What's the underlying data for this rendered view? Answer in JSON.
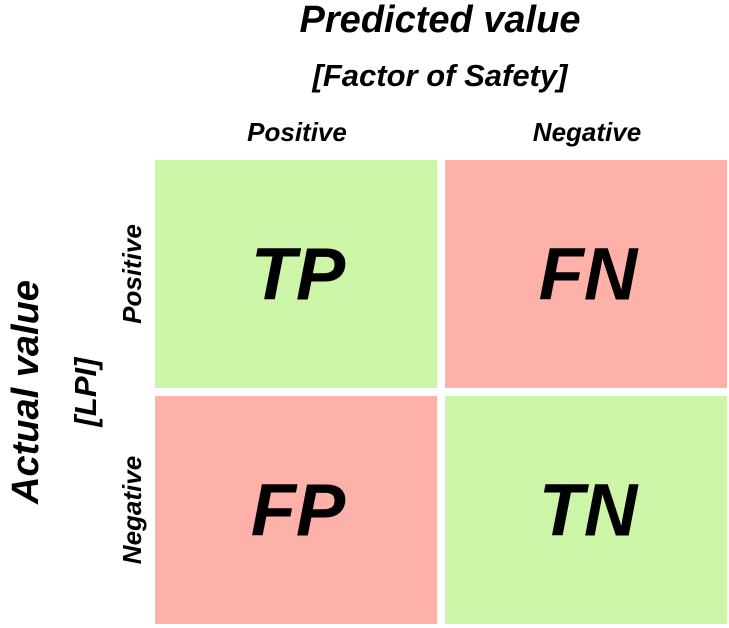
{
  "predicted": {
    "title": "Predicted value",
    "subtitle": "[Factor of Safety]",
    "columns": [
      "Positive",
      "Negative"
    ]
  },
  "actual": {
    "title": "Actual value",
    "subtitle": "[LPI]",
    "rows": [
      "Positive",
      "Negative"
    ]
  },
  "cells": [
    [
      "TP",
      "FN"
    ],
    [
      "FP",
      "TN"
    ]
  ]
}
